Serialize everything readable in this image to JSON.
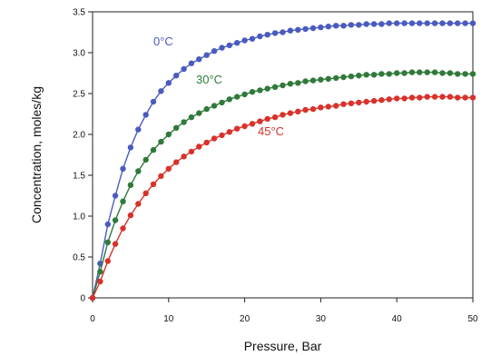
{
  "chart_data": {
    "type": "line",
    "title": "",
    "xlabel": "Pressure, Bar",
    "ylabel": "Concentration, moles/kg",
    "xlim": [
      0,
      50
    ],
    "ylim": [
      0,
      3.5
    ],
    "x_ticks": [
      "0",
      "10",
      "20",
      "30",
      "40",
      "50"
    ],
    "y_ticks": [
      "0",
      "0.5",
      "1.0",
      "1.5",
      "2.0",
      "2.5",
      "3.0",
      "3.5"
    ],
    "grid": false,
    "legend": "inline labels",
    "series": [
      {
        "name": "0°C",
        "color": "#4a5bbf",
        "x": [
          0,
          1,
          2,
          3,
          4,
          5,
          6,
          7,
          8,
          9,
          10,
          11,
          12,
          13,
          14,
          15,
          16,
          17,
          18,
          19,
          20,
          21,
          22,
          23,
          24,
          25,
          26,
          27,
          28,
          29,
          30,
          31,
          32,
          33,
          34,
          35,
          36,
          37,
          38,
          39,
          40,
          41,
          42,
          43,
          44,
          45,
          46,
          47,
          48,
          49,
          50
        ],
        "y": [
          0,
          0.42,
          0.9,
          1.25,
          1.58,
          1.84,
          2.06,
          2.24,
          2.4,
          2.53,
          2.63,
          2.72,
          2.8,
          2.87,
          2.92,
          2.97,
          3.02,
          3.06,
          3.09,
          3.12,
          3.15,
          3.17,
          3.2,
          3.22,
          3.24,
          3.25,
          3.27,
          3.28,
          3.29,
          3.3,
          3.31,
          3.32,
          3.33,
          3.33,
          3.34,
          3.34,
          3.35,
          3.35,
          3.35,
          3.36,
          3.36,
          3.36,
          3.36,
          3.36,
          3.36,
          3.36,
          3.36,
          3.36,
          3.36,
          3.36,
          3.36
        ]
      },
      {
        "name": "30°C",
        "color": "#2f7a3a",
        "x": [
          0,
          1,
          2,
          3,
          4,
          5,
          6,
          7,
          8,
          9,
          10,
          11,
          12,
          13,
          14,
          15,
          16,
          17,
          18,
          19,
          20,
          21,
          22,
          23,
          24,
          25,
          26,
          27,
          28,
          29,
          30,
          31,
          32,
          33,
          34,
          35,
          36,
          37,
          38,
          39,
          40,
          41,
          42,
          43,
          44,
          45,
          46,
          47,
          48,
          49,
          50
        ],
        "y": [
          0,
          0.32,
          0.68,
          0.95,
          1.18,
          1.38,
          1.55,
          1.69,
          1.81,
          1.91,
          2.0,
          2.08,
          2.15,
          2.21,
          2.26,
          2.31,
          2.35,
          2.39,
          2.43,
          2.46,
          2.49,
          2.52,
          2.54,
          2.56,
          2.58,
          2.6,
          2.62,
          2.63,
          2.65,
          2.66,
          2.67,
          2.68,
          2.69,
          2.7,
          2.71,
          2.72,
          2.73,
          2.73,
          2.74,
          2.74,
          2.75,
          2.75,
          2.76,
          2.76,
          2.76,
          2.76,
          2.75,
          2.75,
          2.74,
          2.74,
          2.74
        ]
      },
      {
        "name": "45°C",
        "color": "#d8322b",
        "x": [
          0,
          1,
          2,
          3,
          4,
          5,
          6,
          7,
          8,
          9,
          10,
          11,
          12,
          13,
          14,
          15,
          16,
          17,
          18,
          19,
          20,
          21,
          22,
          23,
          24,
          25,
          26,
          27,
          28,
          29,
          30,
          31,
          32,
          33,
          34,
          35,
          36,
          37,
          38,
          39,
          40,
          41,
          42,
          43,
          44,
          45,
          46,
          47,
          48,
          49,
          50
        ],
        "y": [
          0,
          0.2,
          0.45,
          0.66,
          0.85,
          1.01,
          1.15,
          1.28,
          1.39,
          1.49,
          1.58,
          1.66,
          1.73,
          1.79,
          1.85,
          1.9,
          1.95,
          1.99,
          2.03,
          2.07,
          2.1,
          2.13,
          2.16,
          2.19,
          2.21,
          2.24,
          2.26,
          2.28,
          2.3,
          2.31,
          2.33,
          2.34,
          2.35,
          2.37,
          2.38,
          2.39,
          2.4,
          2.41,
          2.42,
          2.43,
          2.44,
          2.44,
          2.45,
          2.45,
          2.46,
          2.46,
          2.46,
          2.46,
          2.45,
          2.45,
          2.45
        ]
      }
    ],
    "annotations": [
      "0°C",
      "30°C",
      "45°C"
    ]
  }
}
